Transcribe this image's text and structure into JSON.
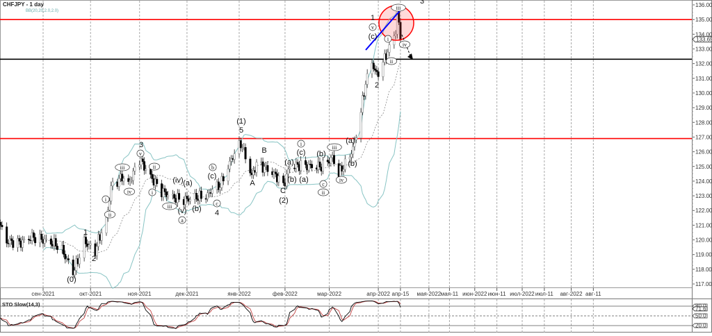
{
  "header": {
    "symbol_title": "CHFJPY - 1 day",
    "indicator_label": "BB(20,20,2.0,2.0)"
  },
  "sub_panel": {
    "title": "STO Slow(14,3)",
    "levels": [
      "80.0",
      "50.0",
      "20.0"
    ],
    "current_value": "71.6"
  },
  "colors": {
    "resistance": "#ff0000",
    "support": "#000000",
    "trendline": "#0000ff",
    "bands": "#88c4c4",
    "stoch_k": "#000000",
    "stoch_d": "#c04040"
  },
  "chart_data": {
    "type": "candlestick",
    "title": "CHFJPY - 1 day",
    "ylim": [
      116.6,
      136.3
    ],
    "y_ticks": [
      "136.000",
      "135.000",
      "134.000",
      "133.000",
      "132.000",
      "131.000",
      "130.000",
      "129.000",
      "128.000",
      "127.000",
      "126.000",
      "125.000",
      "124.000",
      "123.000",
      "122.000",
      "121.000",
      "120.000",
      "119.000",
      "118.000",
      "117.000"
    ],
    "current_price": "133.656",
    "x_ticks": [
      {
        "label": "сен-2021",
        "date": "2021-09-01"
      },
      {
        "label": "окт-2021",
        "date": "2021-10-01"
      },
      {
        "label": "ноя-2021",
        "date": "2021-11-01"
      },
      {
        "label": "дек-2021",
        "date": "2021-12-01"
      },
      {
        "label": "янв-2022",
        "date": "2022-01-03"
      },
      {
        "label": "фев-2022",
        "date": "2022-02-01"
      },
      {
        "label": "мар-2022",
        "date": "2022-03-01"
      },
      {
        "label": "апр-2022",
        "date": "2022-04-01"
      },
      {
        "label": "апр-15",
        "date": "2022-04-15"
      },
      {
        "label": "мая-2022",
        "date": "2022-05-03"
      },
      {
        "label": "мая-11",
        "date": "2022-05-16"
      },
      {
        "label": "июн-2022",
        "date": "2022-06-01"
      },
      {
        "label": "июн-11",
        "date": "2022-06-15"
      },
      {
        "label": "июл-2022",
        "date": "2022-07-01"
      },
      {
        "label": "июл-11",
        "date": "2022-07-15"
      },
      {
        "label": "авг-2022",
        "date": "2022-08-01"
      },
      {
        "label": "авг-11",
        "date": "2022-08-15"
      }
    ],
    "horizontal_levels": [
      {
        "price": 135.0,
        "color": "#ff0000"
      },
      {
        "price": 132.3,
        "color": "#000000"
      },
      {
        "price": 126.9,
        "color": "#ff0000"
      }
    ],
    "approx_closes": [
      [
        "2021-08-05",
        121.0
      ],
      [
        "2021-08-09",
        119.9
      ],
      [
        "2021-08-18",
        119.8
      ],
      [
        "2021-08-25",
        120.2
      ],
      [
        "2021-09-01",
        120.0
      ],
      [
        "2021-09-09",
        119.7
      ],
      [
        "2021-09-13",
        119.3
      ],
      [
        "2021-09-20",
        117.8
      ],
      [
        "2021-09-23",
        118.6
      ],
      [
        "2021-09-27",
        119.9
      ],
      [
        "2021-10-04",
        119.2
      ],
      [
        "2021-10-06",
        120.0
      ],
      [
        "2021-10-11",
        121.3
      ],
      [
        "2021-10-14",
        123.6
      ],
      [
        "2021-10-21",
        124.3
      ],
      [
        "2021-10-25",
        123.8
      ],
      [
        "2021-11-01",
        125.5
      ],
      [
        "2021-11-08",
        124.3
      ],
      [
        "2021-11-15",
        123.3
      ],
      [
        "2021-11-22",
        122.9
      ],
      [
        "2021-11-29",
        122.7
      ],
      [
        "2021-12-06",
        122.9
      ],
      [
        "2021-12-14",
        123.0
      ],
      [
        "2021-12-17",
        123.5
      ],
      [
        "2021-12-22",
        123.7
      ],
      [
        "2021-12-30",
        125.7
      ],
      [
        "2022-01-04",
        126.6
      ],
      [
        "2022-01-07",
        125.7
      ],
      [
        "2022-01-11",
        124.3
      ],
      [
        "2022-01-14",
        125.2
      ],
      [
        "2022-01-21",
        124.8
      ],
      [
        "2022-01-27",
        124.3
      ],
      [
        "2022-01-31",
        123.7
      ],
      [
        "2022-02-04",
        125.0
      ],
      [
        "2022-02-11",
        125.1
      ],
      [
        "2022-02-18",
        125.0
      ],
      [
        "2022-02-24",
        125.0
      ],
      [
        "2022-03-03",
        125.6
      ],
      [
        "2022-03-07",
        124.5
      ],
      [
        "2022-03-14",
        125.7
      ],
      [
        "2022-03-17",
        126.6
      ],
      [
        "2022-03-21",
        128.8
      ],
      [
        "2022-03-24",
        130.7
      ],
      [
        "2022-03-28",
        132.1
      ],
      [
        "2022-03-31",
        131.2
      ],
      [
        "2022-04-04",
        132.1
      ],
      [
        "2022-04-07",
        132.8
      ],
      [
        "2022-04-12",
        134.2
      ],
      [
        "2022-04-13",
        135.5
      ],
      [
        "2022-04-15",
        133.656
      ]
    ],
    "wave_labels": [
      {
        "text": "(0)",
        "circled": false
      },
      {
        "text": "1",
        "circled": false
      },
      {
        "text": "2",
        "circled": false
      },
      {
        "text": "i",
        "circled": true
      },
      {
        "text": "ii",
        "circled": true
      },
      {
        "text": "iii",
        "circled": true
      },
      {
        "text": "iv",
        "circled": true
      },
      {
        "text": "3",
        "circled": false
      },
      {
        "text": "v",
        "circled": true
      },
      {
        "text": "ii",
        "circled": true
      },
      {
        "text": "i",
        "circled": true
      },
      {
        "text": "iii",
        "circled": true
      },
      {
        "text": "(iv)",
        "circled": false
      },
      {
        "text": "(a)",
        "circled": false
      },
      {
        "text": "(v)",
        "circled": false
      },
      {
        "text": "a",
        "circled": true
      },
      {
        "text": "(b)",
        "circled": false
      },
      {
        "text": "b",
        "circled": true
      },
      {
        "text": "(c)",
        "circled": false
      },
      {
        "text": "c",
        "circled": true
      },
      {
        "text": "4",
        "circled": false
      },
      {
        "text": "(1)",
        "circled": false
      },
      {
        "text": "5",
        "circled": false
      },
      {
        "text": "A",
        "circled": false
      },
      {
        "text": "B",
        "circled": false
      },
      {
        "text": "(a)",
        "circled": false
      },
      {
        "text": "(b)",
        "circled": false
      },
      {
        "text": "C",
        "circled": false
      },
      {
        "text": "(2)",
        "circled": false
      },
      {
        "text": "i",
        "circled": true
      },
      {
        "text": "(c)",
        "circled": false
      },
      {
        "text": "(a)",
        "circled": false
      },
      {
        "text": "(b)",
        "circled": false
      },
      {
        "text": "c",
        "circled": true
      },
      {
        "text": "ii",
        "circled": true
      },
      {
        "text": "iii",
        "circled": true
      },
      {
        "text": "iv",
        "circled": true
      },
      {
        "text": "(a)",
        "circled": false
      },
      {
        "text": "(b)",
        "circled": false
      },
      {
        "text": "1",
        "circled": false
      },
      {
        "text": "v",
        "circled": true
      },
      {
        "text": "(c)",
        "circled": false
      },
      {
        "text": "2",
        "circled": false
      },
      {
        "text": "i",
        "circled": true
      },
      {
        "text": "ii",
        "circled": true
      },
      {
        "text": "iii",
        "circled": true
      },
      {
        "text": "iv",
        "circled": true
      },
      {
        "text": "3",
        "circled": false
      }
    ]
  }
}
